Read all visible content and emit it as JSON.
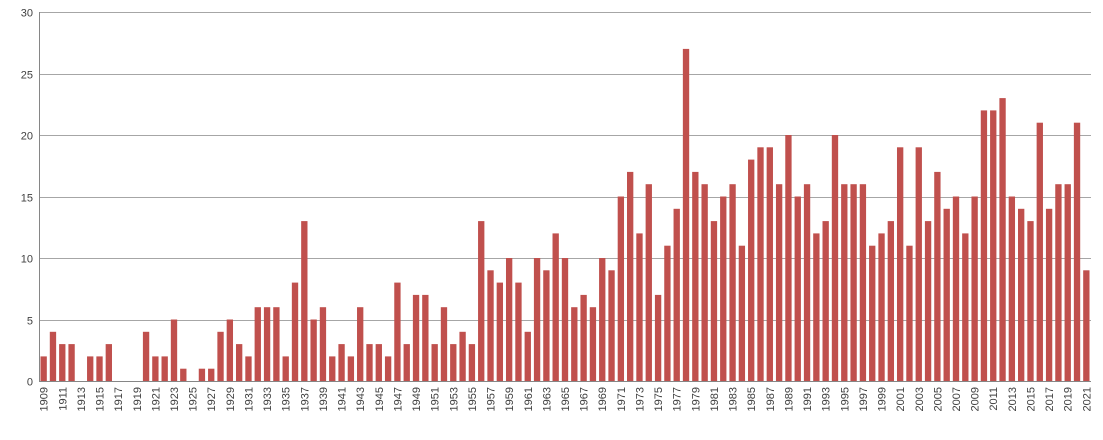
{
  "chart_data": {
    "type": "bar",
    "title": "",
    "xlabel": "",
    "ylabel": "",
    "ylim": [
      0,
      30
    ],
    "y_ticks": [
      0,
      5,
      10,
      15,
      20,
      25,
      30
    ],
    "grid": "horizontal",
    "legend": "none",
    "categories": [
      1909,
      1910,
      1911,
      1912,
      1913,
      1914,
      1915,
      1916,
      1917,
      1918,
      1919,
      1920,
      1921,
      1922,
      1923,
      1924,
      1925,
      1926,
      1927,
      1928,
      1929,
      1930,
      1931,
      1932,
      1933,
      1934,
      1935,
      1936,
      1937,
      1938,
      1939,
      1940,
      1941,
      1942,
      1943,
      1944,
      1945,
      1946,
      1947,
      1948,
      1949,
      1950,
      1951,
      1952,
      1953,
      1954,
      1955,
      1956,
      1957,
      1958,
      1959,
      1960,
      1961,
      1962,
      1963,
      1964,
      1965,
      1966,
      1967,
      1968,
      1969,
      1970,
      1971,
      1972,
      1973,
      1974,
      1975,
      1976,
      1977,
      1978,
      1979,
      1980,
      1981,
      1982,
      1983,
      1984,
      1985,
      1986,
      1987,
      1988,
      1989,
      1990,
      1991,
      1992,
      1993,
      1994,
      1995,
      1996,
      1997,
      1998,
      1999,
      2000,
      2001,
      2002,
      2003,
      2004,
      2005,
      2006,
      2007,
      2008,
      2009,
      2010,
      2011,
      2012,
      2013,
      2014,
      2015,
      2016,
      2017,
      2018,
      2019,
      2020,
      2021
    ],
    "x_tick_labels": [
      "1909",
      "1911",
      "1913",
      "1915",
      "1917",
      "1919",
      "1921",
      "1923",
      "1925",
      "1927",
      "1929",
      "1931",
      "1933",
      "1935",
      "1937",
      "1939",
      "1941",
      "1943",
      "1945",
      "1947",
      "1949",
      "1951",
      "1953",
      "1955",
      "1957",
      "1959",
      "1961",
      "1963",
      "1965",
      "1967",
      "1969",
      "1971",
      "1973",
      "1975",
      "1977",
      "1979",
      "1981",
      "1983",
      "1985",
      "1987",
      "1989",
      "1991",
      "1993",
      "1995",
      "1997",
      "1999",
      "2001",
      "2003",
      "2005",
      "2007",
      "2009",
      "2011",
      "2013",
      "2015",
      "2017",
      "2019",
      "2021"
    ],
    "values": [
      2,
      4,
      3,
      3,
      0,
      2,
      2,
      3,
      0,
      0,
      0,
      4,
      2,
      2,
      5,
      1,
      0,
      1,
      1,
      4,
      5,
      3,
      2,
      6,
      6,
      6,
      2,
      8,
      13,
      5,
      6,
      2,
      3,
      2,
      6,
      3,
      3,
      2,
      8,
      3,
      7,
      7,
      3,
      6,
      3,
      4,
      3,
      13,
      9,
      8,
      10,
      8,
      4,
      10,
      9,
      12,
      10,
      6,
      7,
      6,
      10,
      9,
      15,
      17,
      12,
      16,
      7,
      11,
      14,
      27,
      17,
      16,
      13,
      15,
      16,
      11,
      18,
      19,
      19,
      16,
      20,
      15,
      16,
      12,
      13,
      20,
      16,
      16,
      16,
      11,
      12,
      13,
      19,
      11,
      19,
      13,
      17,
      14,
      15,
      12,
      15,
      22,
      22,
      23,
      15,
      14,
      13,
      21,
      14,
      16,
      16,
      21,
      9
    ],
    "bar_color": "#C0504D",
    "grid_color": "#A6A6A6"
  }
}
